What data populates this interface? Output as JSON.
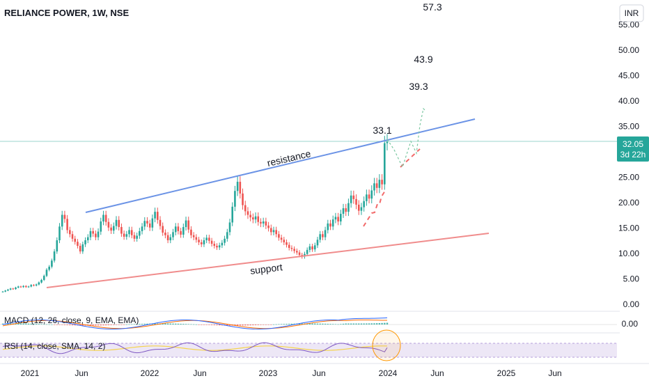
{
  "header": {
    "symbol_title": "RELIANCE POWER, 1W, NSE",
    "currency_button": "INR"
  },
  "price_tag": {
    "price": "32.05",
    "countdown": "3d 22h"
  },
  "panes": {
    "macd_label": "MACD (12, 26, close, 9, EMA, EMA)",
    "macd_axis_value": "0.00",
    "rsi_label": "RSI (14, close, SMA, 14, 2)"
  },
  "colors": {
    "up": "#26a69a",
    "down": "#ef5350",
    "resistance": "#6b93e6",
    "support": "#f08c8c",
    "projection": "#f26a6a",
    "projection_alt": "#79c7a0",
    "price_line": "#9bd5cc",
    "macd_line": "#2962ff",
    "signal_line": "#ff6d00",
    "rsi_line": "#7e57c2",
    "rsi_ma": "#f5d34a",
    "rsi_band": "#ede7f6"
  },
  "chart_data": {
    "type": "candlestick",
    "title": "RELIANCE POWER, 1W, NSE",
    "ylim": [
      0,
      57
    ],
    "y_ticks": [
      "0.00",
      "5.00",
      "10.00",
      "15.00",
      "20.00",
      "25.00",
      "30.00",
      "35.00",
      "40.00",
      "45.00",
      "50.00",
      "55.00"
    ],
    "x_ticks": [
      "2021",
      "Jun",
      "2022",
      "Jun",
      "2023",
      "Jun",
      "2024",
      "Jun",
      "2025",
      "Jun"
    ],
    "last_price": 32.05,
    "annotations": [
      {
        "text": "resistance",
        "kind": "label"
      },
      {
        "text": "support",
        "kind": "label"
      },
      {
        "text": "33.1",
        "value": 33.1
      },
      {
        "text": "39.3",
        "value": 39.3
      },
      {
        "text": "43.9",
        "value": 43.9
      },
      {
        "text": "57.3",
        "value": 57.3
      }
    ],
    "trendlines": {
      "resistance": {
        "from": {
          "x": "2021-06",
          "y": 18.2
        },
        "to": {
          "x": "2024-07",
          "y": 36.6
        }
      },
      "support": {
        "from": {
          "x": "2021-01",
          "y": 3.3
        },
        "to": {
          "x": "2024-09",
          "y": 13.9
        }
      }
    },
    "series_close": [
      2.5,
      2.7,
      2.9,
      3.1,
      3.0,
      3.3,
      3.5,
      3.4,
      3.6,
      3.4,
      3.5,
      3.8,
      3.7,
      3.9,
      4.3,
      4.8,
      5.6,
      6.8,
      7.4,
      8.6,
      10.4,
      12.6,
      15.3,
      17.6,
      16.8,
      14.6,
      13.8,
      12.9,
      12.3,
      11.5,
      10.4,
      11.8,
      12.6,
      13.2,
      14.4,
      13.9,
      13.2,
      14.3,
      16.3,
      17.6,
      16.2,
      15.1,
      14.5,
      15.4,
      16.6,
      15.2,
      13.9,
      13.3,
      13.8,
      14.6,
      13.6,
      12.9,
      13.5,
      14.4,
      15.3,
      16.4,
      15.9,
      15.1,
      16.9,
      18.2,
      16.6,
      15.4,
      14.1,
      13.6,
      12.6,
      13.2,
      14.2,
      15.3,
      14.4,
      13.7,
      15.2,
      16.5,
      14.7,
      13.6,
      13.2,
      12.7,
      12.2,
      11.8,
      12.6,
      13.1,
      12.5,
      11.9,
      11.5,
      11.2,
      11.6,
      12.1,
      12.9,
      14.2,
      16.1,
      19.2,
      22.3,
      24.1,
      21.8,
      19.5,
      18.3,
      17.6,
      17.1,
      16.7,
      17.3,
      16.2,
      15.9,
      16.3,
      15.5,
      15.0,
      14.2,
      14.6,
      13.8,
      13.1,
      12.7,
      12.2,
      11.7,
      11.1,
      10.9,
      10.5,
      10.2,
      9.7,
      9.4,
      9.9,
      10.7,
      11.4,
      10.8,
      11.6,
      12.7,
      13.8,
      13.2,
      14.6,
      15.9,
      15.3,
      16.7,
      17.2,
      16.3,
      17.8,
      18.9,
      18.2,
      19.9,
      21.4,
      20.7,
      19.6,
      18.4,
      19.1,
      20.3,
      21.6,
      20.8,
      22.4,
      23.8,
      22.9,
      24.5,
      23.6,
      31.7,
      32.05
    ],
    "macd": {
      "zero_label": "0.00"
    },
    "rsi": {
      "upper": 70,
      "lower": 30
    }
  }
}
